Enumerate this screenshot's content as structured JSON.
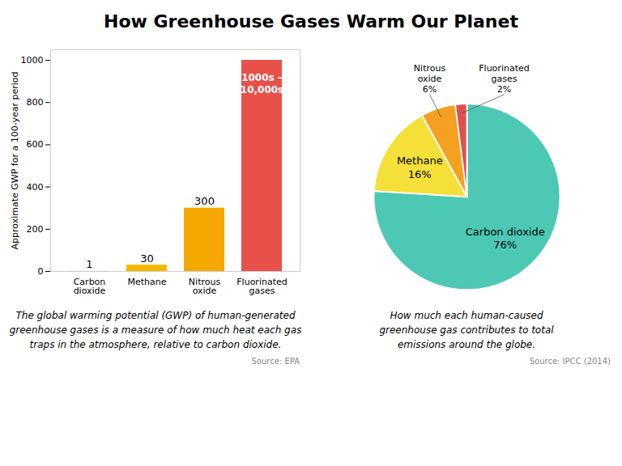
{
  "title": "How Greenhouse Gases Warm Our Planet",
  "chart_data": [
    {
      "type": "bar",
      "categories": [
        "Carbon\ndioxide",
        "Methane",
        "Nitrous\noxide",
        "Fluorinated\ngases"
      ],
      "values": [
        1,
        30,
        300,
        1000
      ],
      "value_labels": [
        "1",
        "30",
        "300",
        "1000s –\n10,000s"
      ],
      "colors": [
        "#d4cfc9",
        "#f5b800",
        "#f5a800",
        "#e8504a"
      ],
      "ylabel": "Approximate GWP for a 100-year period",
      "ylim": [
        0,
        1050
      ],
      "yticks": [
        0,
        200,
        400,
        600,
        800,
        1000
      ],
      "grid": false,
      "data_labels": true,
      "caption": "The global warming potential (GWP) of human-generated\ngreenhouse gases is a measure of how much heat each gas\ntraps in the atmosphere, relative to carbon dioxide.",
      "source": "Source: EPA"
    },
    {
      "type": "pie",
      "categories": [
        "Carbon dioxide",
        "Methane",
        "Nitrous\noxide",
        "Fluorinated\ngases"
      ],
      "values": [
        76,
        16,
        6,
        2
      ],
      "value_labels": [
        "76%",
        "16%",
        "6%",
        "2%"
      ],
      "colors": [
        "#4dc8b4",
        "#f5e03a",
        "#f5a020",
        "#e05050"
      ],
      "data_labels": true,
      "caption": "How much each human-caused\ngreenhouse gas contributes to total\nemissions around the globe.",
      "source": "Source: IPCC (2014)"
    }
  ]
}
